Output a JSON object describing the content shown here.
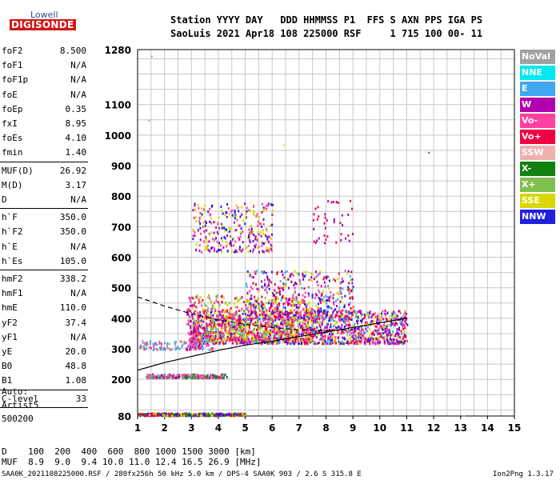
{
  "logo": {
    "line1": "Lowell",
    "line2": "DIGISONDE"
  },
  "header": {
    "line1": "Station YYYY DAY   DDD HHMMSS P1  FFS S AXN PPS IGA PS",
    "line2": "SaoLuis 2021 Apr18 108 225000 RSF     1 715 100 00- 11"
  },
  "params": [
    {
      "group": [
        {
          "k": "foF2",
          "v": "8.500"
        },
        {
          "k": "foF1",
          "v": "N/A"
        },
        {
          "k": "foF1p",
          "v": "N/A"
        },
        {
          "k": "foE",
          "v": "N/A"
        },
        {
          "k": "foEp",
          "v": "0.35"
        },
        {
          "k": "fxI",
          "v": "8.95"
        },
        {
          "k": "foEs",
          "v": "4.10"
        },
        {
          "k": "fmin",
          "v": "1.40"
        }
      ]
    },
    {
      "group": [
        {
          "k": "MUF(D)",
          "v": "26.92"
        },
        {
          "k": "M(D)",
          "v": "3.17"
        },
        {
          "k": "D",
          "v": "N/A"
        }
      ]
    },
    {
      "group": [
        {
          "k": "h`F",
          "v": "350.0"
        },
        {
          "k": "h`F2",
          "v": "350.0"
        },
        {
          "k": "h`E",
          "v": "N/A"
        },
        {
          "k": "h`Es",
          "v": "105.0"
        }
      ]
    },
    {
      "group": [
        {
          "k": "hmF2",
          "v": "338.2"
        },
        {
          "k": "hmF1",
          "v": "N/A"
        },
        {
          "k": "hmE",
          "v": "110.0"
        },
        {
          "k": "yF2",
          "v": "37.4"
        },
        {
          "k": "yF1",
          "v": "N/A"
        },
        {
          "k": "yE",
          "v": "20.0"
        },
        {
          "k": "B0",
          "v": "48.8"
        },
        {
          "k": "B1",
          "v": "1.08"
        }
      ]
    },
    {
      "group": [
        {
          "k": "C-level",
          "v": "33"
        }
      ]
    }
  ],
  "autoscale": {
    "l1": "Auto:",
    "l2": "Artist5",
    "l3": "500200"
  },
  "legend": [
    {
      "label": "NoVal",
      "color": "#a0a0a0"
    },
    {
      "label": "NNE",
      "color": "#00e8f0"
    },
    {
      "label": "E",
      "color": "#40a8f0"
    },
    {
      "label": "W",
      "color": "#b000b0"
    },
    {
      "label": "Vo-",
      "color": "#ff40a0"
    },
    {
      "label": "Vo+",
      "color": "#f00040"
    },
    {
      "label": "SSW",
      "color": "#f0b0b0"
    },
    {
      "label": "X-",
      "color": "#108010"
    },
    {
      "label": "X+",
      "color": "#80c050"
    },
    {
      "label": "SSE",
      "color": "#d8d800"
    },
    {
      "label": "NNW",
      "color": "#2020e0"
    }
  ],
  "footer": {
    "d_line": "D    100  200  400  600  800 1000 1500 3000 [km]",
    "muf_line": "MUF  8.9  9.0  9.4 10.0 11.0 12.4 16.5 26.9 [MHz]",
    "file_line": "SAA0K_2021108225000.RSF / 280fx256h 50 kHz 5.0 km / DPS-4 SAA0K 903 / 2.6 S 315.8 E",
    "version": "Ion2Png 1.3.17"
  },
  "chart_data": {
    "type": "scatter",
    "title": "",
    "xlabel": "",
    "ylabel": "",
    "xlim": [
      1,
      15
    ],
    "ylim": [
      80,
      1280
    ],
    "x_ticks": [
      1,
      2,
      3,
      4,
      5,
      6,
      7,
      8,
      9,
      10,
      11,
      12,
      13,
      14,
      15
    ],
    "y_ticks": [
      80,
      200,
      300,
      400,
      500,
      600,
      700,
      800,
      900,
      1000,
      1100,
      1280
    ],
    "grid": true,
    "profile_line": [
      [
        1,
        230
      ],
      [
        2,
        255
      ],
      [
        3,
        275
      ],
      [
        4,
        295
      ],
      [
        5,
        312
      ],
      [
        6,
        325
      ],
      [
        7,
        340
      ],
      [
        8,
        355
      ],
      [
        9,
        370
      ],
      [
        10,
        385
      ],
      [
        11,
        400
      ]
    ],
    "dashed_line": [
      [
        1,
        470
      ],
      [
        2,
        440
      ],
      [
        3,
        415
      ],
      [
        4,
        395
      ],
      [
        5,
        380
      ],
      [
        6,
        370
      ],
      [
        7,
        362
      ],
      [
        8,
        360
      ],
      [
        9,
        362
      ]
    ],
    "clusters": [
      {
        "x": [
          2.9,
          11.0
        ],
        "y": [
          320,
          430
        ],
        "n": 1600,
        "colors": [
          "#f00040",
          "#ff40a0",
          "#b000b0",
          "#2020e0",
          "#40a8f0",
          "#d8d800"
        ]
      },
      {
        "x": [
          3.0,
          7.5
        ],
        "y": [
          330,
          480
        ],
        "n": 700,
        "colors": [
          "#d8d800",
          "#80c050",
          "#f00040",
          "#ff40a0"
        ]
      },
      {
        "x": [
          5.0,
          9.0
        ],
        "y": [
          400,
          560
        ],
        "n": 500,
        "colors": [
          "#f00040",
          "#ff40a0",
          "#b000b0",
          "#2020e0",
          "#40a8f0",
          "#d8d800"
        ]
      },
      {
        "x": [
          3.0,
          6.0
        ],
        "y": [
          620,
          780
        ],
        "n": 300,
        "colors": [
          "#d8d800",
          "#ff40a0",
          "#b000b0",
          "#2020e0"
        ]
      },
      {
        "x": [
          1.0,
          5.0
        ],
        "y": [
          84,
          92
        ],
        "n": 350,
        "colors": [
          "#f00040",
          "#b000b0",
          "#108010",
          "#2020e0",
          "#d8d800"
        ]
      },
      {
        "x": [
          1.3,
          4.3
        ],
        "y": [
          208,
          220
        ],
        "n": 250,
        "colors": [
          "#ff40a0",
          "#b000b0",
          "#108010",
          "#a0a0a0"
        ]
      },
      {
        "x": [
          1.0,
          3.8
        ],
        "y": [
          300,
          330
        ],
        "n": 120,
        "colors": [
          "#40a8f0",
          "#ff40a0",
          "#a0a0a0"
        ]
      },
      {
        "x": [
          7.5,
          9.0
        ],
        "y": [
          650,
          800
        ],
        "n": 40,
        "colors": [
          "#b000b0",
          "#f00040"
        ]
      },
      {
        "x": [
          2.8,
          3.3
        ],
        "y": [
          300,
          480
        ],
        "n": 80,
        "colors": [
          "#b000b0",
          "#ff40a0"
        ]
      }
    ]
  }
}
